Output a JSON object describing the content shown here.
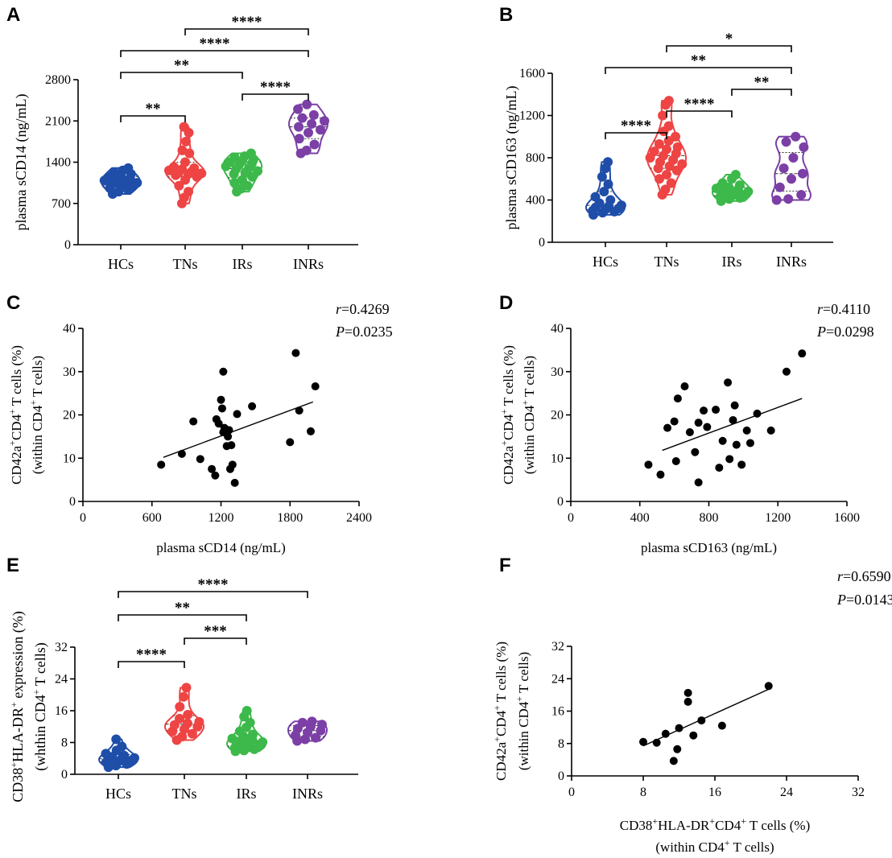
{
  "colors": {
    "HCs": "#1f4ea8",
    "TNs": "#ee4444",
    "IRs": "#3cb94a",
    "INRs": "#7b3fa6",
    "scatter": "#000000"
  },
  "chart_data": [
    {
      "panel": "A",
      "type": "violin",
      "ylabel": "plasma sCD14 (ng/mL)",
      "categories": [
        "HCs",
        "TNs",
        "IRs",
        "INRs"
      ],
      "yticks": [
        0,
        700,
        1400,
        2100,
        2800
      ],
      "ylim": [
        0,
        2800
      ],
      "series": [
        {
          "name": "HCs",
          "values": [
            860,
            900,
            930,
            960,
            980,
            1000,
            1010,
            1030,
            1050,
            1060,
            1080,
            1090,
            1110,
            1130,
            1150,
            1180,
            1200,
            1230,
            1260,
            1300
          ]
        },
        {
          "name": "TNs",
          "values": [
            700,
            800,
            900,
            1000,
            1100,
            1150,
            1180,
            1200,
            1210,
            1220,
            1240,
            1260,
            1280,
            1300,
            1320,
            1400,
            1550,
            1600,
            1750,
            1900,
            2000
          ]
        },
        {
          "name": "IRs",
          "values": [
            900,
            950,
            1000,
            1050,
            1100,
            1150,
            1200,
            1220,
            1250,
            1280,
            1300,
            1330,
            1350,
            1380,
            1400,
            1420,
            1450,
            1480,
            1500,
            1550
          ]
        },
        {
          "name": "INRs",
          "values": [
            1550,
            1600,
            1700,
            1800,
            1900,
            1950,
            2000,
            2050,
            2100,
            2150,
            2200,
            2300,
            2380
          ]
        }
      ],
      "brackets": [
        {
          "from": 0,
          "to": 1,
          "label": "**"
        },
        {
          "from": 2,
          "to": 3,
          "label": "****"
        },
        {
          "from": 0,
          "to": 2,
          "label": "**"
        },
        {
          "from": 0,
          "to": 3,
          "label": "****"
        },
        {
          "from": 1,
          "to": 3,
          "label": "****"
        }
      ]
    },
    {
      "panel": "B",
      "type": "violin",
      "ylabel": "plasma sCD163 (ng/mL)",
      "categories": [
        "HCs",
        "TNs",
        "IRs",
        "INRs"
      ],
      "yticks": [
        0,
        400,
        800,
        1200,
        1600
      ],
      "ylim": [
        0,
        1600
      ],
      "series": [
        {
          "name": "HCs",
          "values": [
            260,
            280,
            290,
            300,
            310,
            320,
            330,
            340,
            350,
            370,
            400,
            430,
            480,
            550,
            620,
            700,
            760
          ]
        },
        {
          "name": "TNs",
          "values": [
            450,
            500,
            560,
            600,
            640,
            680,
            700,
            720,
            740,
            760,
            780,
            800,
            820,
            840,
            860,
            880,
            900,
            930,
            960,
            1000,
            1050,
            1100,
            1200,
            1300,
            1340
          ]
        },
        {
          "name": "IRs",
          "values": [
            390,
            410,
            420,
            430,
            440,
            450,
            460,
            470,
            480,
            490,
            500,
            510,
            520,
            540,
            560,
            600,
            640
          ]
        },
        {
          "name": "INRs",
          "values": [
            400,
            410,
            450,
            520,
            600,
            650,
            700,
            800,
            900,
            950,
            1000
          ]
        }
      ],
      "brackets": [
        {
          "from": 0,
          "to": 1,
          "label": "****"
        },
        {
          "from": 1,
          "to": 2,
          "label": "****"
        },
        {
          "from": 2,
          "to": 3,
          "label": "**"
        },
        {
          "from": 0,
          "to": 3,
          "label": "**"
        },
        {
          "from": 1,
          "to": 3,
          "label": "*"
        }
      ]
    },
    {
      "panel": "C",
      "type": "scatter",
      "ylabel1": "CD42a⁺CD4⁺ T cells (%)",
      "ylabel2": "(within CD4⁺ T cells)",
      "xlabel1": "plasma sCD14 (ng/mL)",
      "xlabel2": "",
      "xticks": [
        0,
        600,
        1200,
        1800,
        2400
      ],
      "xlim": [
        0,
        2400
      ],
      "yticks": [
        0,
        10,
        20,
        30,
        40
      ],
      "ylim": [
        0,
        40
      ],
      "r_label": "r",
      "r_value": "=0.4269",
      "p_label": "P",
      "p_value": "=0.0235",
      "fit": {
        "x1": 700,
        "y1": 10.2,
        "x2": 2000,
        "y2": 23
      },
      "points": [
        [
          680,
          8.5
        ],
        [
          860,
          11
        ],
        [
          960,
          18.5
        ],
        [
          1020,
          9.8
        ],
        [
          1120,
          7.5
        ],
        [
          1150,
          6
        ],
        [
          1160,
          19
        ],
        [
          1180,
          18
        ],
        [
          1200,
          23.5
        ],
        [
          1210,
          21.5
        ],
        [
          1220,
          30
        ],
        [
          1220,
          16
        ],
        [
          1230,
          17
        ],
        [
          1250,
          12.8
        ],
        [
          1260,
          15
        ],
        [
          1270,
          16.5
        ],
        [
          1280,
          7.5
        ],
        [
          1290,
          13
        ],
        [
          1300,
          8.5
        ],
        [
          1320,
          4.3
        ],
        [
          1340,
          20.2
        ],
        [
          1470,
          22
        ],
        [
          1800,
          13.7
        ],
        [
          1850,
          34.3
        ],
        [
          1880,
          21
        ],
        [
          1980,
          16.2
        ],
        [
          2020,
          26.6
        ]
      ]
    },
    {
      "panel": "D",
      "type": "scatter",
      "ylabel1": "CD42a⁺CD4⁺ T cells (%)",
      "ylabel2": "(within CD4⁺ T cells)",
      "xlabel1": "plasma sCD163 (ng/mL)",
      "xlabel2": "",
      "xticks": [
        0,
        400,
        800,
        1200,
        1600
      ],
      "xlim": [
        0,
        1600
      ],
      "yticks": [
        0,
        10,
        20,
        30,
        40
      ],
      "ylim": [
        0,
        40
      ],
      "r_label": "r",
      "r_value": "=0.4110",
      "p_label": "P",
      "p_value": "=0.0298",
      "fit": {
        "x1": 530,
        "y1": 11.8,
        "x2": 1340,
        "y2": 23.8
      },
      "points": [
        [
          450,
          8.5
        ],
        [
          520,
          6.2
        ],
        [
          560,
          17
        ],
        [
          600,
          18.5
        ],
        [
          610,
          9.3
        ],
        [
          620,
          23.8
        ],
        [
          660,
          26.6
        ],
        [
          690,
          16
        ],
        [
          720,
          11.4
        ],
        [
          740,
          18.2
        ],
        [
          740,
          4.4
        ],
        [
          770,
          21
        ],
        [
          790,
          17.2
        ],
        [
          840,
          21.2
        ],
        [
          860,
          7.8
        ],
        [
          880,
          14
        ],
        [
          910,
          27.5
        ],
        [
          920,
          9.8
        ],
        [
          940,
          18.8
        ],
        [
          950,
          22.2
        ],
        [
          960,
          13.1
        ],
        [
          990,
          8.5
        ],
        [
          1020,
          16.4
        ],
        [
          1040,
          13.5
        ],
        [
          1080,
          20.3
        ],
        [
          1160,
          16.4
        ],
        [
          1250,
          30
        ],
        [
          1340,
          34.2
        ]
      ]
    },
    {
      "panel": "E",
      "type": "violin",
      "ylabel1": "CD38⁺HLA-DR⁺ expression (%)",
      "ylabel2": "(whthin CD4⁺ T cells)",
      "categories": [
        "HCs",
        "TNs",
        "IRs",
        "INRs"
      ],
      "yticks": [
        0,
        8,
        16,
        24,
        32
      ],
      "ylim": [
        0,
        32
      ],
      "series": [
        {
          "name": "HCs",
          "values": [
            1.8,
            2.2,
            2.6,
            3.0,
            3.2,
            3.5,
            3.7,
            3.9,
            4.1,
            4.4,
            4.7,
            5.2,
            6.0,
            7.0,
            8.8
          ]
        },
        {
          "name": "TNs",
          "values": [
            8.6,
            9.5,
            10.2,
            10.8,
            11.4,
            12.0,
            12.4,
            12.8,
            13.2,
            14.0,
            15.0,
            17.0,
            19.5,
            21.8
          ]
        },
        {
          "name": "IRs",
          "values": [
            5.8,
            6.0,
            6.3,
            6.6,
            6.9,
            7.2,
            7.5,
            7.8,
            8.1,
            8.4,
            8.7,
            9.0,
            9.4,
            10.0,
            10.8,
            11.8,
            13.0,
            14.5,
            16.0
          ]
        },
        {
          "name": "INRs",
          "values": [
            8.4,
            8.8,
            9.2,
            9.8,
            10.5,
            11.0,
            11.5,
            12.0,
            12.5,
            13.0,
            13.3
          ]
        }
      ],
      "brackets": [
        {
          "from": 0,
          "to": 1,
          "label": "****"
        },
        {
          "from": 1,
          "to": 2,
          "label": "***"
        },
        {
          "from": 0,
          "to": 2,
          "label": "**"
        },
        {
          "from": 0,
          "to": 3,
          "label": "****"
        }
      ]
    },
    {
      "panel": "F",
      "type": "scatter",
      "ylabel1": "CD42a⁺CD4⁺ T cells (%)",
      "ylabel2": "(within CD4⁺ T cells)",
      "xlabel1": "CD38⁺HLA-DR⁺CD4⁺ T cells (%)",
      "xlabel2": "(within CD4⁺ T cells)",
      "xticks": [
        0,
        8,
        16,
        24,
        32
      ],
      "xlim": [
        0,
        32
      ],
      "yticks": [
        0,
        8,
        16,
        24,
        32
      ],
      "ylim": [
        0,
        32
      ],
      "r_label": "r",
      "r_value": "=0.6590",
      "p_label": "P",
      "p_value": "=0.0143",
      "fit": {
        "x1": 8,
        "y1": 7.4,
        "x2": 22,
        "y2": 21.4
      },
      "points": [
        [
          8.0,
          8.4
        ],
        [
          9.5,
          8.2
        ],
        [
          10.5,
          10.4
        ],
        [
          11.4,
          3.7
        ],
        [
          11.8,
          6.6
        ],
        [
          12.0,
          11.8
        ],
        [
          13.0,
          20.5
        ],
        [
          13.0,
          18.3
        ],
        [
          13.6,
          10.0
        ],
        [
          14.5,
          13.7
        ],
        [
          16.8,
          12.4
        ],
        [
          22.0,
          22.2
        ]
      ]
    }
  ]
}
